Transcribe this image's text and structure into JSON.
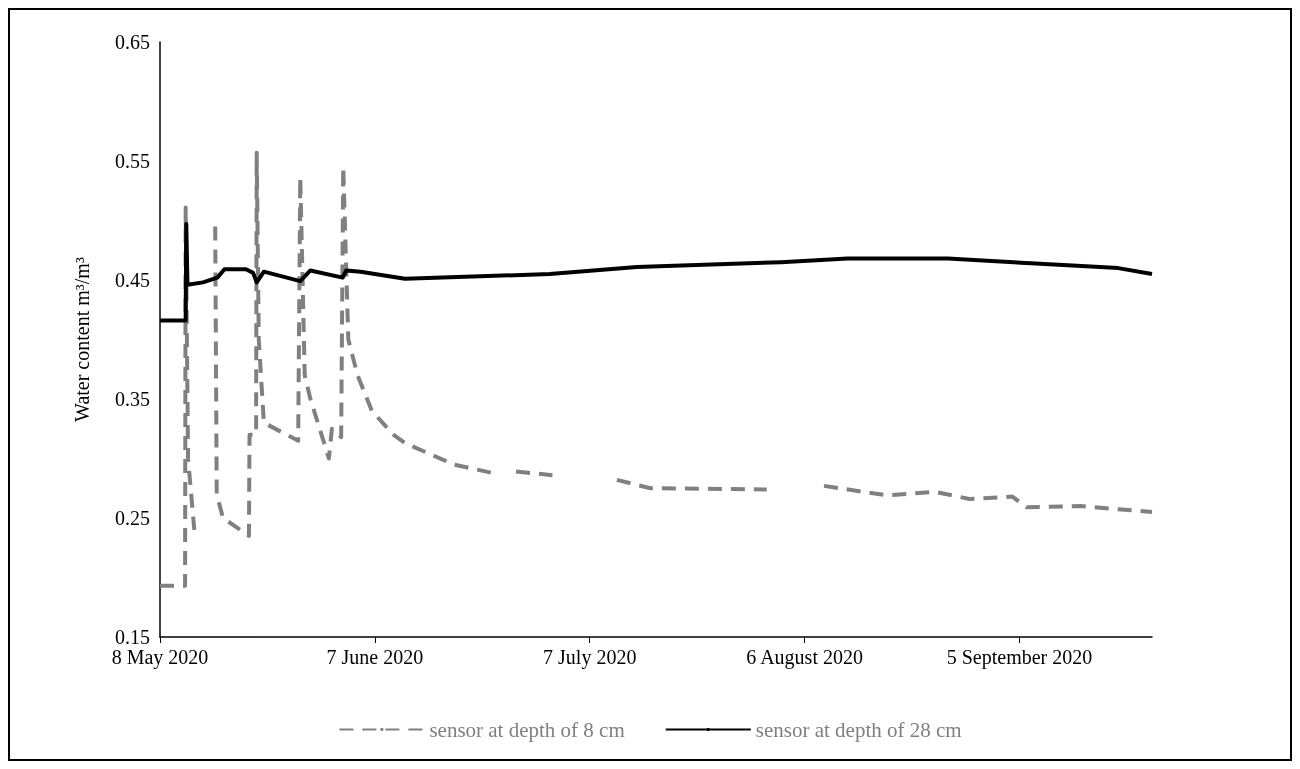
{
  "chart_data": {
    "type": "line",
    "ylabel": "Water content m³/m³",
    "xlim": [
      "2020-05-08",
      "2020-09-23T12:00"
    ],
    "xticks": [
      {
        "value": "2020-05-08",
        "label": "8 May 2020"
      },
      {
        "value": "2020-06-07",
        "label": "7 June 2020"
      },
      {
        "value": "2020-07-07",
        "label": "7 July 2020"
      },
      {
        "value": "2020-08-06",
        "label": "6 August 2020"
      },
      {
        "value": "2020-09-05",
        "label": "5 September 2020"
      }
    ],
    "ylim": [
      0.15,
      0.65
    ],
    "yticks": [
      0.15,
      0.25,
      0.35,
      0.45,
      0.55,
      0.65
    ],
    "grid": false,
    "legend": "bottom",
    "marker": "none",
    "series": [
      {
        "name": "sensor at depth of 8 cm",
        "color": "#808080",
        "line_style": "dashed",
        "x": [
          "2020-05-08T00:00",
          "2020-05-11T12:00",
          "2020-05-11T14:00",
          "2020-05-11T22:00",
          "2020-05-12T19:00",
          "2020-05-14T00:00",
          "2020-05-15T17:00",
          "2020-05-15T22:00",
          "2020-05-16T19:00",
          "2020-05-20T10:00",
          "2020-05-20T12:00",
          "2020-05-21T10:00",
          "2020-05-21T12:00",
          "2020-05-21T19:00",
          "2020-05-22T12:00",
          "2020-05-27T07:00",
          "2020-05-27T14:00",
          "2020-05-28T05:00",
          "2020-05-29T00:00",
          "2020-05-31T14:00",
          "2020-06-01T00:00",
          "2020-06-02T07:00",
          "2020-06-02T14:00",
          "2020-06-03T07:00",
          "2020-06-04T14:00",
          "2020-06-06T14:00",
          "2020-06-09T14:00",
          "2020-06-11T05:00",
          "2020-06-18T00:00",
          "2020-06-23T07:00",
          "2020-06-25T00:00",
          "2020-06-26T17:00",
          "2020-07-01T19:00",
          "2020-07-06T00:00",
          "2020-07-10T19:00",
          "2020-07-15T12:00",
          "2020-07-31T17:00",
          "2020-08-04T00:00",
          "2020-08-08T17:00",
          "2020-08-17T12:00",
          "2020-08-24T05:00",
          "2020-08-29T00:00",
          "2020-09-04T00:00",
          "2020-09-06T00:00",
          "2020-09-13T12:00",
          "2020-09-23T12:00"
        ],
        "values": [
          0.193,
          0.193,
          0.511,
          0.3,
          0.24,
          null,
          0.495,
          0.27,
          0.25,
          0.235,
          0.32,
          0.32,
          0.557,
          0.4,
          0.33,
          0.315,
          0.536,
          0.37,
          0.35,
          0.3,
          0.325,
          0.318,
          0.545,
          0.4,
          0.37,
          0.34,
          0.32,
          0.313,
          0.295,
          0.288,
          null,
          0.289,
          0.286,
          null,
          0.282,
          0.275,
          0.274,
          null,
          0.277,
          0.269,
          0.272,
          0.266,
          0.268,
          0.259,
          0.26,
          0.255
        ]
      },
      {
        "name": "sensor at depth of 28 cm",
        "color": "#000000",
        "line_style": "solid",
        "x": [
          "2020-05-08T00:00",
          "2020-05-11T14:00",
          "2020-05-11T16:00",
          "2020-05-11T20:00",
          "2020-05-14T00:00",
          "2020-05-16T00:00",
          "2020-05-17T00:00",
          "2020-05-20T00:00",
          "2020-05-21T00:00",
          "2020-05-21T12:00",
          "2020-05-22T12:00",
          "2020-05-27T14:00",
          "2020-05-29T00:00",
          "2020-06-02T12:00",
          "2020-06-03T00:00",
          "2020-06-05T00:00",
          "2020-06-11T05:00",
          "2020-07-01T10:00",
          "2020-07-13T14:00",
          "2020-08-02T17:00",
          "2020-08-12T00:00",
          "2020-08-26T00:00",
          "2020-09-06T14:00",
          "2020-09-18T19:00",
          "2020-09-23T12:00"
        ],
        "values": [
          0.416,
          0.416,
          0.497,
          0.446,
          0.448,
          0.452,
          0.459,
          0.459,
          0.456,
          0.448,
          0.457,
          0.449,
          0.458,
          0.452,
          0.458,
          0.457,
          0.451,
          0.455,
          0.461,
          0.465,
          0.468,
          0.468,
          0.464,
          0.46,
          0.455
        ]
      }
    ]
  }
}
